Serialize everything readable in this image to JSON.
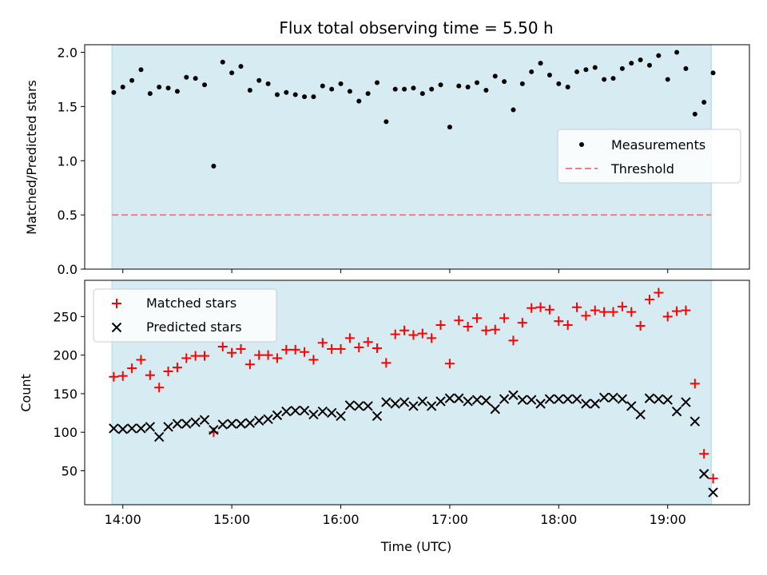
{
  "title": "Flux total observing time = 5.50 h",
  "colors": {
    "shade": "#add8e6",
    "measurement": "#000000",
    "threshold": "#f08080",
    "matched": "#ff0000",
    "predicted": "#000000"
  },
  "chart_data": [
    {
      "type": "scatter",
      "ylabel": "Matched/Predicted stars",
      "ylim": [
        0,
        2.07
      ],
      "yticks": [
        "0.0",
        "0.5",
        "1.0",
        "1.5",
        "2.0"
      ],
      "ytick_values": [
        0,
        0.5,
        1.0,
        1.5,
        2.0
      ],
      "shaded_span": [
        "13:54",
        "19:24"
      ],
      "threshold": {
        "name": "Threshold",
        "value": 0.5
      },
      "legend_position": "center-right",
      "legend": [
        "Measurements",
        "Threshold"
      ],
      "series": [
        {
          "name": "Measurements",
          "x": [
            "13:55",
            "14:00",
            "14:05",
            "14:10",
            "14:15",
            "14:20",
            "14:25",
            "14:30",
            "14:35",
            "14:40",
            "14:45",
            "14:50",
            "14:55",
            "15:00",
            "15:05",
            "15:10",
            "15:15",
            "15:20",
            "15:25",
            "15:30",
            "15:35",
            "15:40",
            "15:45",
            "15:50",
            "15:55",
            "16:00",
            "16:05",
            "16:10",
            "16:15",
            "16:20",
            "16:25",
            "16:30",
            "16:35",
            "16:40",
            "16:45",
            "16:50",
            "16:55",
            "17:00",
            "17:05",
            "17:10",
            "17:15",
            "17:20",
            "17:25",
            "17:30",
            "17:35",
            "17:40",
            "17:45",
            "17:50",
            "17:55",
            "18:00",
            "18:05",
            "18:10",
            "18:15",
            "18:20",
            "18:25",
            "18:30",
            "18:35",
            "18:40",
            "18:45",
            "18:50",
            "18:55",
            "19:00",
            "19:05",
            "19:10",
            "19:15",
            "19:20",
            "19:25"
          ],
          "values": [
            1.63,
            1.68,
            1.74,
            1.84,
            1.62,
            1.68,
            1.67,
            1.64,
            1.77,
            1.76,
            1.7,
            0.95,
            1.91,
            1.81,
            1.87,
            1.65,
            1.74,
            1.71,
            1.61,
            1.63,
            1.61,
            1.59,
            1.59,
            1.69,
            1.66,
            1.71,
            1.64,
            1.55,
            1.62,
            1.72,
            1.36,
            1.66,
            1.66,
            1.67,
            1.62,
            1.66,
            1.7,
            1.31,
            1.69,
            1.68,
            1.72,
            1.65,
            1.78,
            1.73,
            1.47,
            1.71,
            1.82,
            1.9,
            1.79,
            1.71,
            1.68,
            1.82,
            1.84,
            1.86,
            1.75,
            1.76,
            1.85,
            1.9,
            1.93,
            1.88,
            1.97,
            1.75,
            2.0,
            1.85,
            1.43,
            1.54,
            1.81
          ]
        }
      ]
    },
    {
      "type": "scatter",
      "xlabel": "Time (UTC)",
      "ylabel": "Count",
      "ylim": [
        6,
        297
      ],
      "yticks": [
        "50",
        "100",
        "150",
        "200",
        "250"
      ],
      "ytick_values": [
        50,
        100,
        150,
        200,
        250
      ],
      "xticks": [
        "14:00",
        "15:00",
        "16:00",
        "17:00",
        "18:00",
        "19:00"
      ],
      "xlim": [
        "13:39",
        "19:45"
      ],
      "shaded_span": [
        "13:54",
        "19:24"
      ],
      "legend_position": "upper-left",
      "legend": [
        "Matched stars",
        "Predicted stars"
      ],
      "series": [
        {
          "name": "Matched stars",
          "marker": "+",
          "x": [
            "13:55",
            "14:00",
            "14:05",
            "14:10",
            "14:15",
            "14:20",
            "14:25",
            "14:30",
            "14:35",
            "14:40",
            "14:45",
            "14:50",
            "14:55",
            "15:00",
            "15:05",
            "15:10",
            "15:15",
            "15:20",
            "15:25",
            "15:30",
            "15:35",
            "15:40",
            "15:45",
            "15:50",
            "15:55",
            "16:00",
            "16:05",
            "16:10",
            "16:15",
            "16:20",
            "16:25",
            "16:30",
            "16:35",
            "16:40",
            "16:45",
            "16:50",
            "16:55",
            "17:00",
            "17:05",
            "17:10",
            "17:15",
            "17:20",
            "17:25",
            "17:30",
            "17:35",
            "17:40",
            "17:45",
            "17:50",
            "17:55",
            "18:00",
            "18:05",
            "18:10",
            "18:15",
            "18:20",
            "18:25",
            "18:30",
            "18:35",
            "18:40",
            "18:45",
            "18:50",
            "18:55",
            "19:00",
            "19:05",
            "19:10",
            "19:15",
            "19:20",
            "19:25"
          ],
          "values": [
            172,
            173,
            183,
            194,
            174,
            158,
            179,
            184,
            196,
            199,
            199,
            100,
            211,
            203,
            208,
            188,
            200,
            200,
            196,
            207,
            207,
            204,
            194,
            216,
            208,
            208,
            222,
            210,
            217,
            209,
            190,
            227,
            232,
            226,
            228,
            222,
            239,
            189,
            245,
            237,
            248,
            232,
            233,
            248,
            219,
            242,
            261,
            262,
            259,
            244,
            239,
            262,
            251,
            258,
            256,
            256,
            263,
            256,
            238,
            272,
            281,
            250,
            257,
            258,
            163,
            72,
            40
          ]
        },
        {
          "name": "Predicted stars",
          "marker": "x",
          "x": [
            "13:55",
            "14:00",
            "14:05",
            "14:10",
            "14:15",
            "14:20",
            "14:25",
            "14:30",
            "14:35",
            "14:40",
            "14:45",
            "14:50",
            "14:55",
            "15:00",
            "15:05",
            "15:10",
            "15:15",
            "15:20",
            "15:25",
            "15:30",
            "15:35",
            "15:40",
            "15:45",
            "15:50",
            "15:55",
            "16:00",
            "16:05",
            "16:10",
            "16:15",
            "16:20",
            "16:25",
            "16:30",
            "16:35",
            "16:40",
            "16:45",
            "16:50",
            "16:55",
            "17:00",
            "17:05",
            "17:10",
            "17:15",
            "17:20",
            "17:25",
            "17:30",
            "17:35",
            "17:40",
            "17:45",
            "17:50",
            "17:55",
            "18:00",
            "18:05",
            "18:10",
            "18:15",
            "18:20",
            "18:25",
            "18:30",
            "18:35",
            "18:40",
            "18:45",
            "18:50",
            "18:55",
            "19:00",
            "19:05",
            "19:10",
            "19:15",
            "19:20",
            "19:25"
          ],
          "values": [
            105,
            104,
            105,
            105,
            107,
            94,
            107,
            111,
            111,
            113,
            116,
            103,
            110,
            111,
            111,
            112,
            115,
            117,
            122,
            127,
            128,
            128,
            123,
            127,
            125,
            121,
            135,
            134,
            134,
            121,
            139,
            137,
            139,
            134,
            140,
            134,
            140,
            144,
            144,
            140,
            142,
            141,
            130,
            143,
            148,
            142,
            142,
            137,
            143,
            143,
            143,
            143,
            137,
            137,
            145,
            145,
            143,
            134,
            123,
            144,
            143,
            142,
            127,
            139,
            114,
            46,
            22
          ]
        }
      ]
    }
  ]
}
